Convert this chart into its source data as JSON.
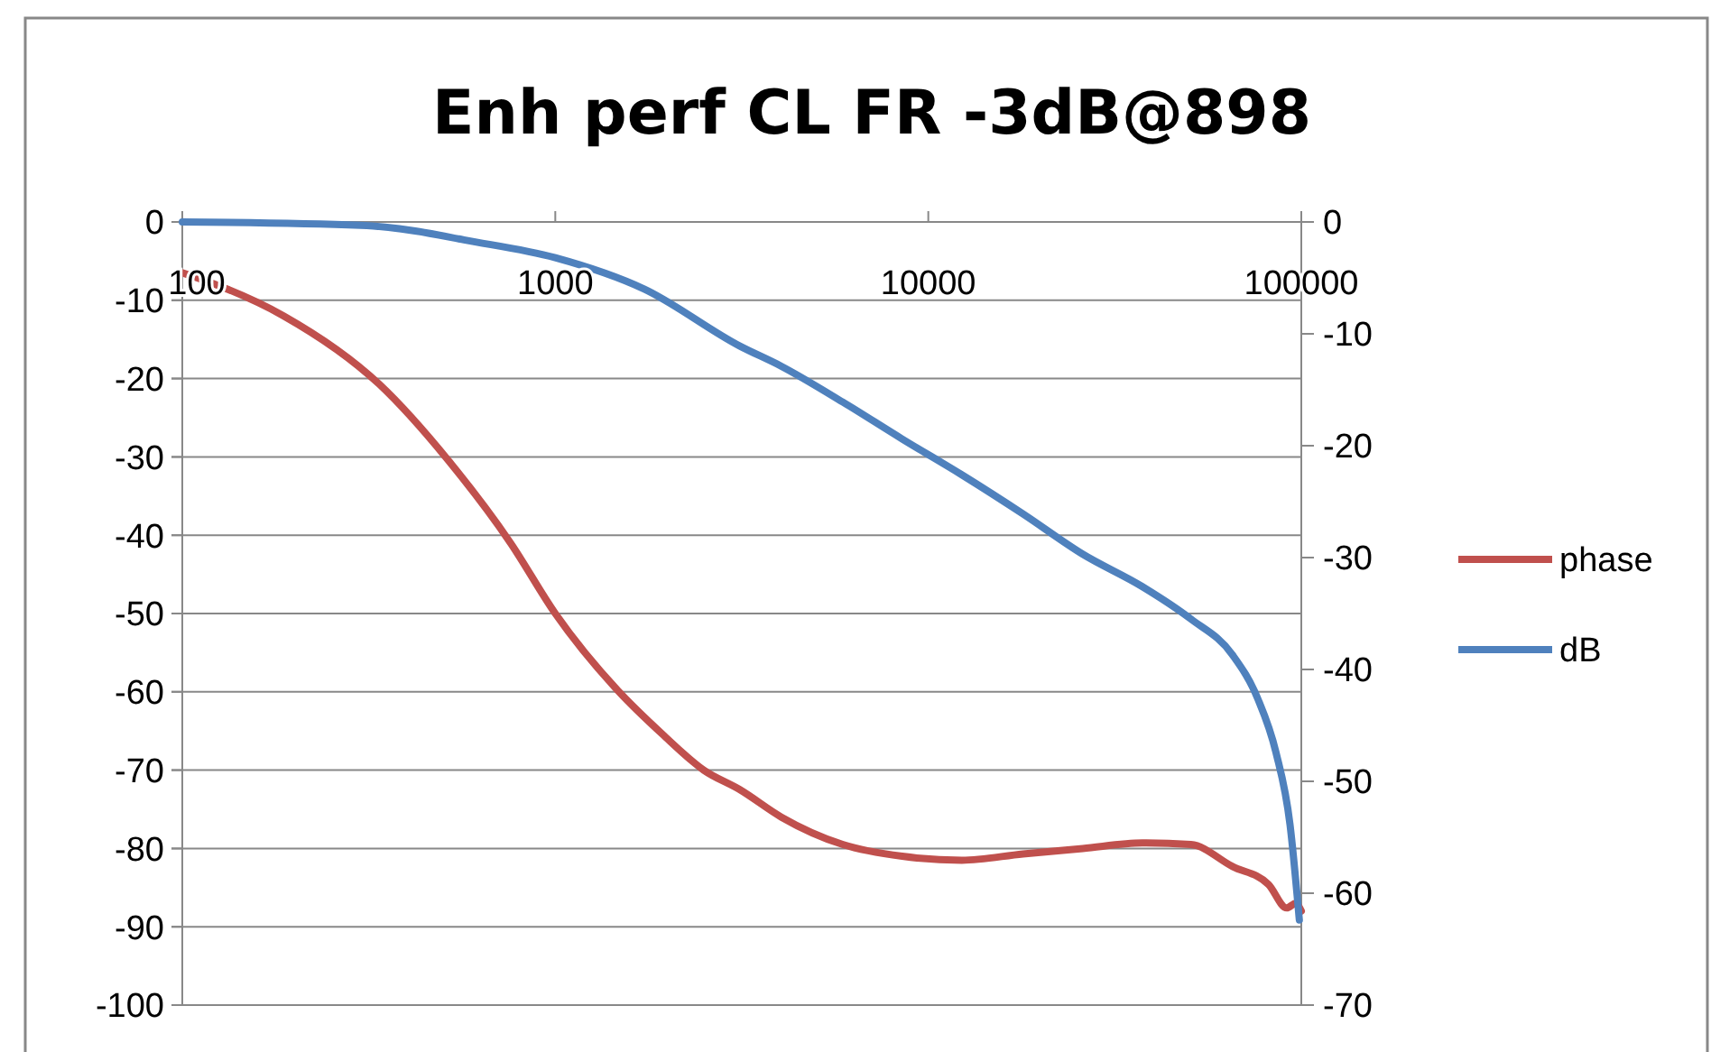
{
  "chart_data": {
    "type": "line",
    "title": "Enh  perf CL FR -3dB@898",
    "log": "x",
    "xlim": [
      100,
      100000
    ],
    "xticks": [
      100,
      1000,
      10000,
      100000
    ],
    "ylim": [
      -100,
      0
    ],
    "yticks": [
      -100,
      -90,
      -80,
      -70,
      -60,
      -50,
      -40,
      -30,
      -20,
      -10,
      0
    ],
    "y2lim": [
      -70,
      0
    ],
    "y2ticks": [
      -70,
      -60,
      -50,
      -40,
      -30,
      -20,
      -10,
      0
    ],
    "grid": "y",
    "legend": "right",
    "marker": "none",
    "line_style": "solid",
    "series": [
      {
        "name": "phase",
        "color": "#c0504d",
        "x": [
          100,
          120,
          187,
          337,
          526,
          759,
          1000,
          1482,
          1936,
          2500,
          3126,
          4037,
          5900,
          8511,
          12300,
          17950,
          25950,
          37500,
          50600,
          65400,
          81700,
          91400,
          96600,
          100000
        ],
        "values": [
          -6.5,
          -7.8,
          -12,
          -20.7,
          -30.9,
          -41,
          -50,
          -60,
          -65.4,
          -70,
          -72.5,
          -76,
          -79.5,
          -81,
          -81.5,
          -80.7,
          -80,
          -79.3,
          -79.5,
          -82.3,
          -84.6,
          -87.6,
          -87,
          -88
        ]
      },
      {
        "name": "dB",
        "color": "#4f81bd",
        "axis": "y2",
        "x": [
          100,
          301,
          421,
          569,
          1000,
          1731,
          3126,
          4037,
          5900,
          8511,
          12300,
          17950,
          25950,
          37500,
          50600,
          65400,
          76400,
          85500,
          93300,
          98800
        ],
        "values": [
          0,
          -0.3,
          -0.8,
          -1.6,
          -3.2,
          -6,
          -11.1,
          -12.9,
          -16.1,
          -19.4,
          -22.6,
          -26.1,
          -29.7,
          -32.6,
          -35.5,
          -38.7,
          -42.6,
          -47.4,
          -53.9,
          -62.4
        ]
      }
    ]
  }
}
